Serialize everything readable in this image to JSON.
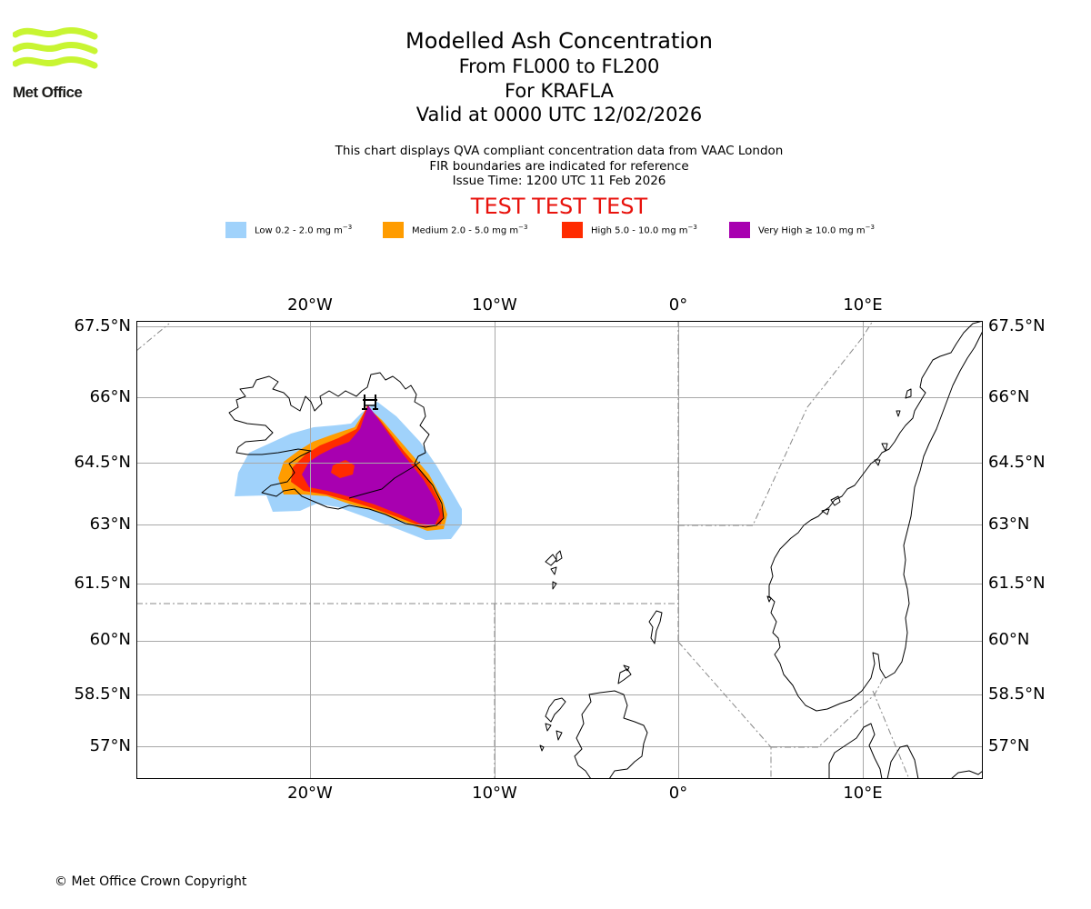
{
  "logo": {
    "name": "Met Office",
    "lime_color": "#c8f532"
  },
  "titles": {
    "main": "Modelled Ash Concentration",
    "levels": "From FL000 to FL200",
    "volcano": "For KRAFLA",
    "valid": "Valid at 0000 UTC 12/02/2026"
  },
  "info": {
    "line1": "This chart displays QVA compliant concentration data from VAAC London",
    "line2": "FIR boundaries are indicated for reference",
    "line3": "Issue Time: 1200 UTC 11 Feb 2026"
  },
  "test_banner": "TEST TEST TEST",
  "legend": [
    {
      "label": "Low 0.2 - 2.0 mg m",
      "exp": "−3",
      "color": "#a0d2fb"
    },
    {
      "label": "Medium 2.0 - 5.0 mg m",
      "exp": "−3",
      "color": "#ff9c00"
    },
    {
      "label": "High 5.0 - 10.0 mg m",
      "exp": "−3",
      "color": "#ff2b00"
    },
    {
      "label": "Very High  ≥  10.0 mg m",
      "exp": "−3",
      "color": "#a800b0"
    }
  ],
  "axes": {
    "lon_labels": [
      "20°W",
      "10°W",
      "0°",
      "10°E"
    ],
    "lat_labels": [
      "67.5°N",
      "66°N",
      "64.5°N",
      "63°N",
      "61.5°N",
      "60°N",
      "58.5°N",
      "57°N"
    ]
  },
  "map_data": {
    "volcano_marker": "volcano-icon",
    "coastline_color": "#000000",
    "grid_color": "#a8a8a8",
    "fir_color": "#888888"
  },
  "copyright": "© Met Office Crown Copyright"
}
